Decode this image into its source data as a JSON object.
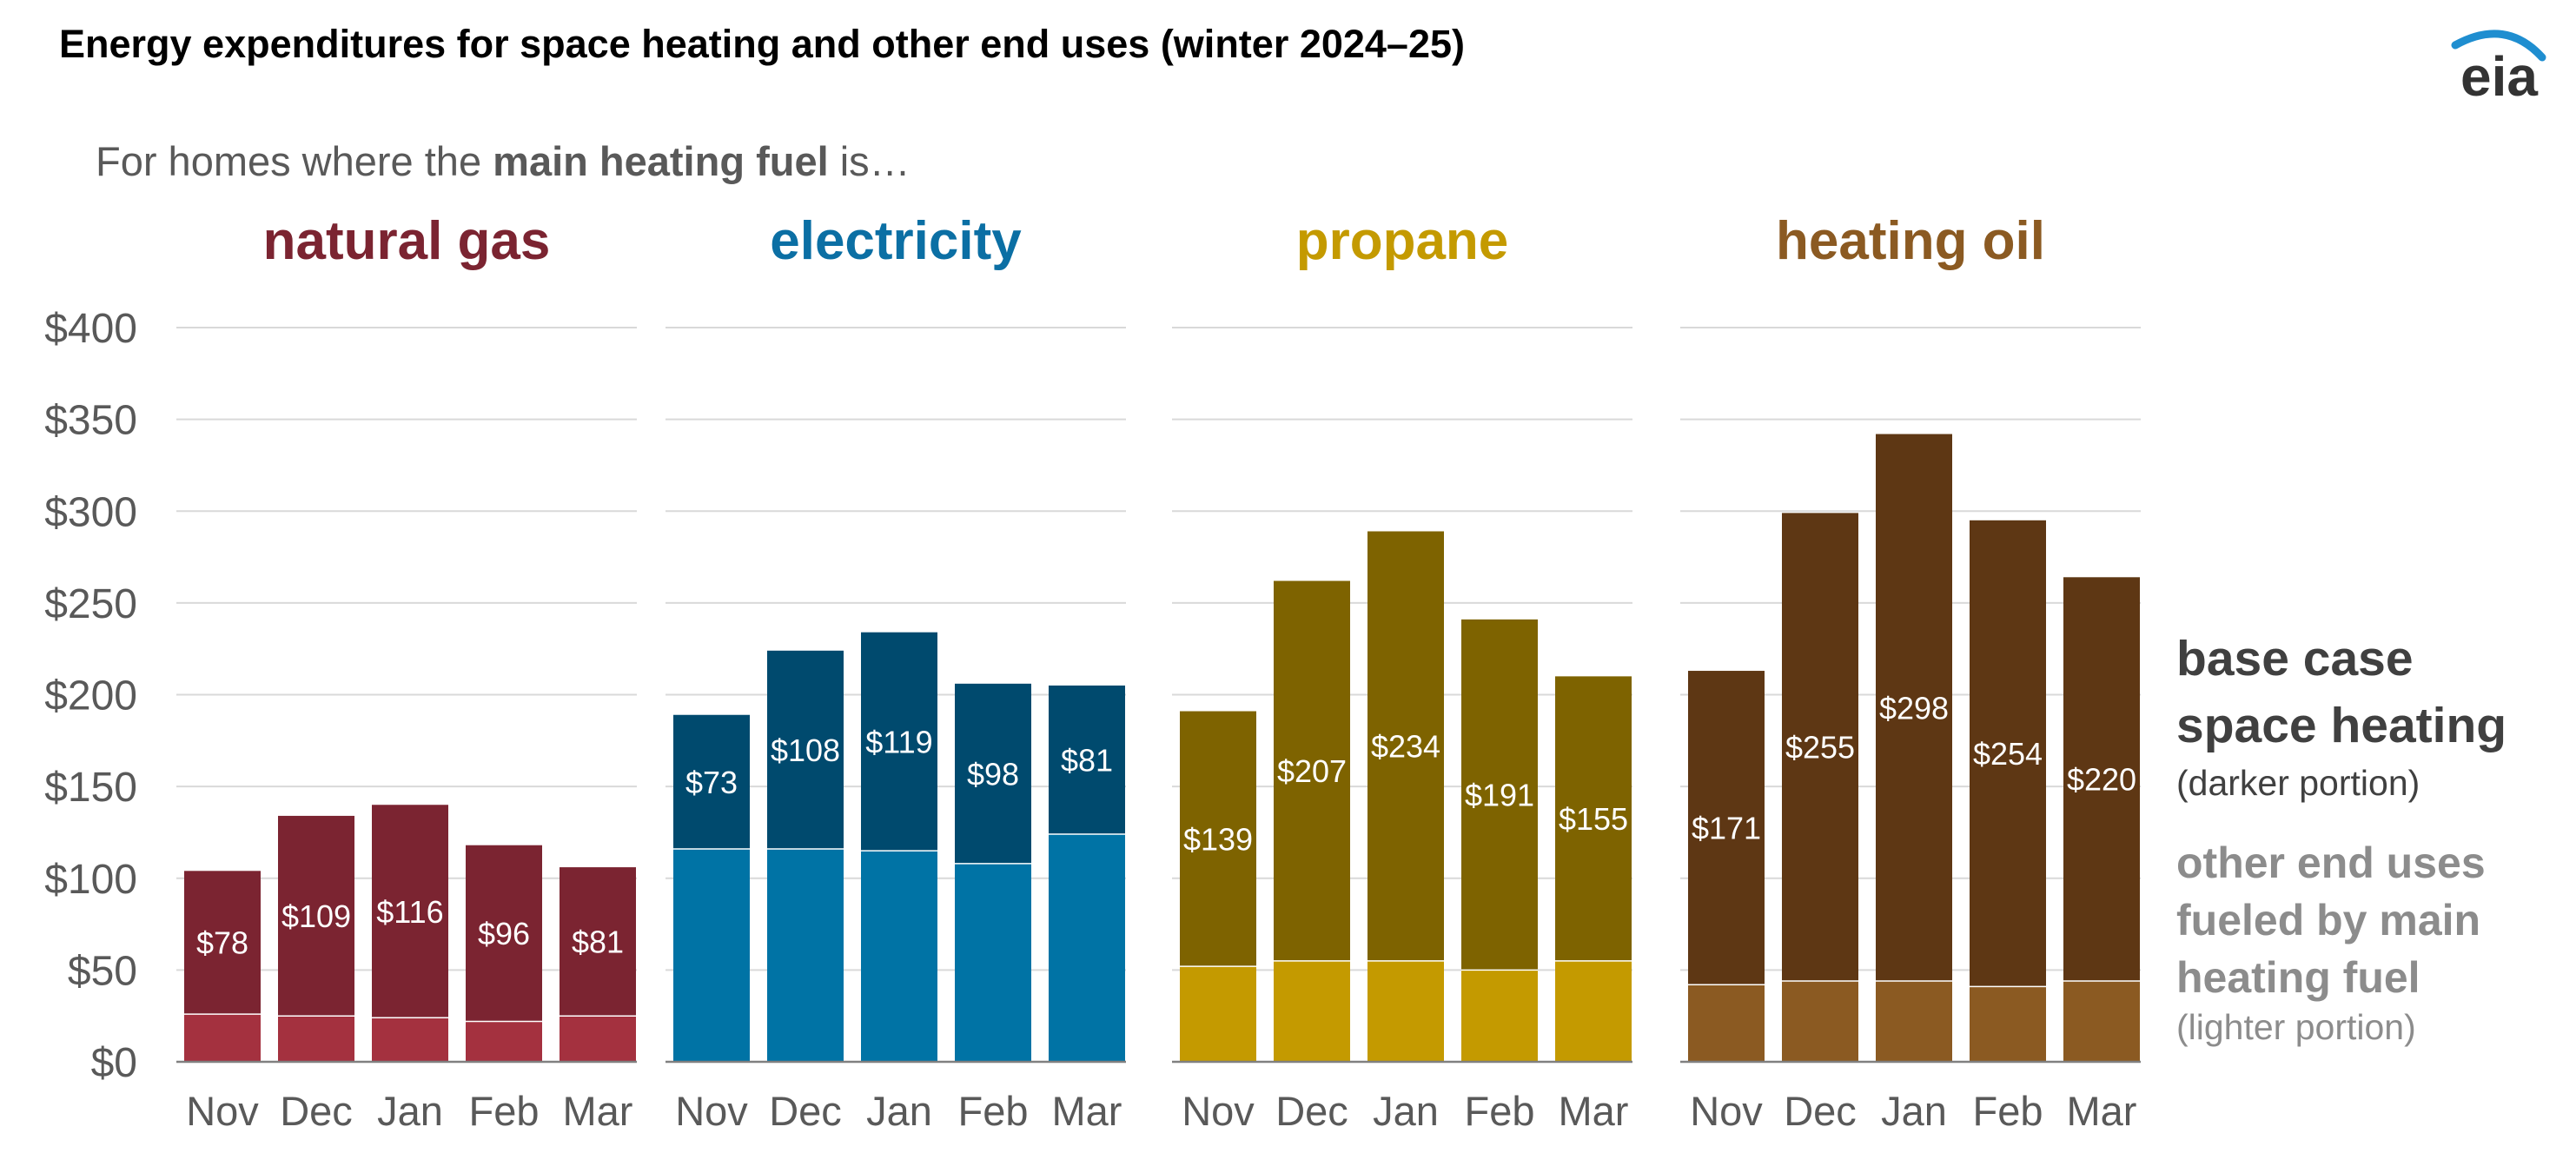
{
  "title": "Energy expenditures for space heating and other end uses (winter 2024–25)",
  "subtitle": {
    "prefix": "For homes where the ",
    "bold": "main heating fuel",
    "suffix": " is…"
  },
  "logo": {
    "text": "eia",
    "icon": "eia-swoosh-logo",
    "accent": "#1F8ED0"
  },
  "legend": {
    "base_case": {
      "line1": "base case",
      "line2": "space heating",
      "note": "(darker portion)",
      "color": "#404040",
      "note_color": "#404040"
    },
    "other": {
      "line1": "other end uses",
      "line2": "fueled by main",
      "line3": "heating fuel",
      "note": "(lighter portion)",
      "color": "#8C8C8C",
      "note_color": "#8C8C8C"
    }
  },
  "chart_data": {
    "type": "bar",
    "stacked": true,
    "ylim": [
      0,
      400
    ],
    "yticks": [
      0,
      50,
      100,
      150,
      200,
      250,
      300,
      350,
      400
    ],
    "ytick_labels": [
      "$0",
      "$50",
      "$100",
      "$150",
      "$200",
      "$250",
      "$300",
      "$350",
      "$400"
    ],
    "grid": true,
    "categories": [
      "Nov",
      "Dec",
      "Jan",
      "Feb",
      "Mar"
    ],
    "label_prefix": "$",
    "panels": [
      {
        "title": "natural gas",
        "title_color": "#7B2431",
        "dark_color": "#7B2431",
        "light_color": "#A4313F",
        "series": [
          {
            "name": "other end uses fueled by main heating fuel",
            "values": [
              26,
              25,
              24,
              22,
              25
            ]
          },
          {
            "name": "base case space heating",
            "values": [
              78,
              109,
              116,
              96,
              81
            ]
          }
        ]
      },
      {
        "title": "electricity",
        "title_color": "#0B6FA4",
        "dark_color": "#004A6E",
        "light_color": "#0073A5",
        "series": [
          {
            "name": "other end uses fueled by main heating fuel",
            "values": [
              116,
              116,
              115,
              108,
              124
            ]
          },
          {
            "name": "base case space heating",
            "values": [
              73,
              108,
              119,
              98,
              81
            ]
          }
        ]
      },
      {
        "title": "propane",
        "title_color": "#C49A00",
        "dark_color": "#7E6300",
        "light_color": "#C49A00",
        "series": [
          {
            "name": "other end uses fueled by main heating fuel",
            "values": [
              52,
              55,
              55,
              50,
              55
            ]
          },
          {
            "name": "base case space heating",
            "values": [
              139,
              207,
              234,
              191,
              155
            ]
          }
        ]
      },
      {
        "title": "heating oil",
        "title_color": "#8B5A22",
        "dark_color": "#5E3714",
        "light_color": "#8B5A22",
        "series": [
          {
            "name": "other end uses fueled by main heating fuel",
            "values": [
              42,
              44,
              44,
              41,
              44
            ]
          },
          {
            "name": "base case space heating",
            "values": [
              171,
              255,
              298,
              254,
              220
            ]
          }
        ]
      }
    ]
  }
}
